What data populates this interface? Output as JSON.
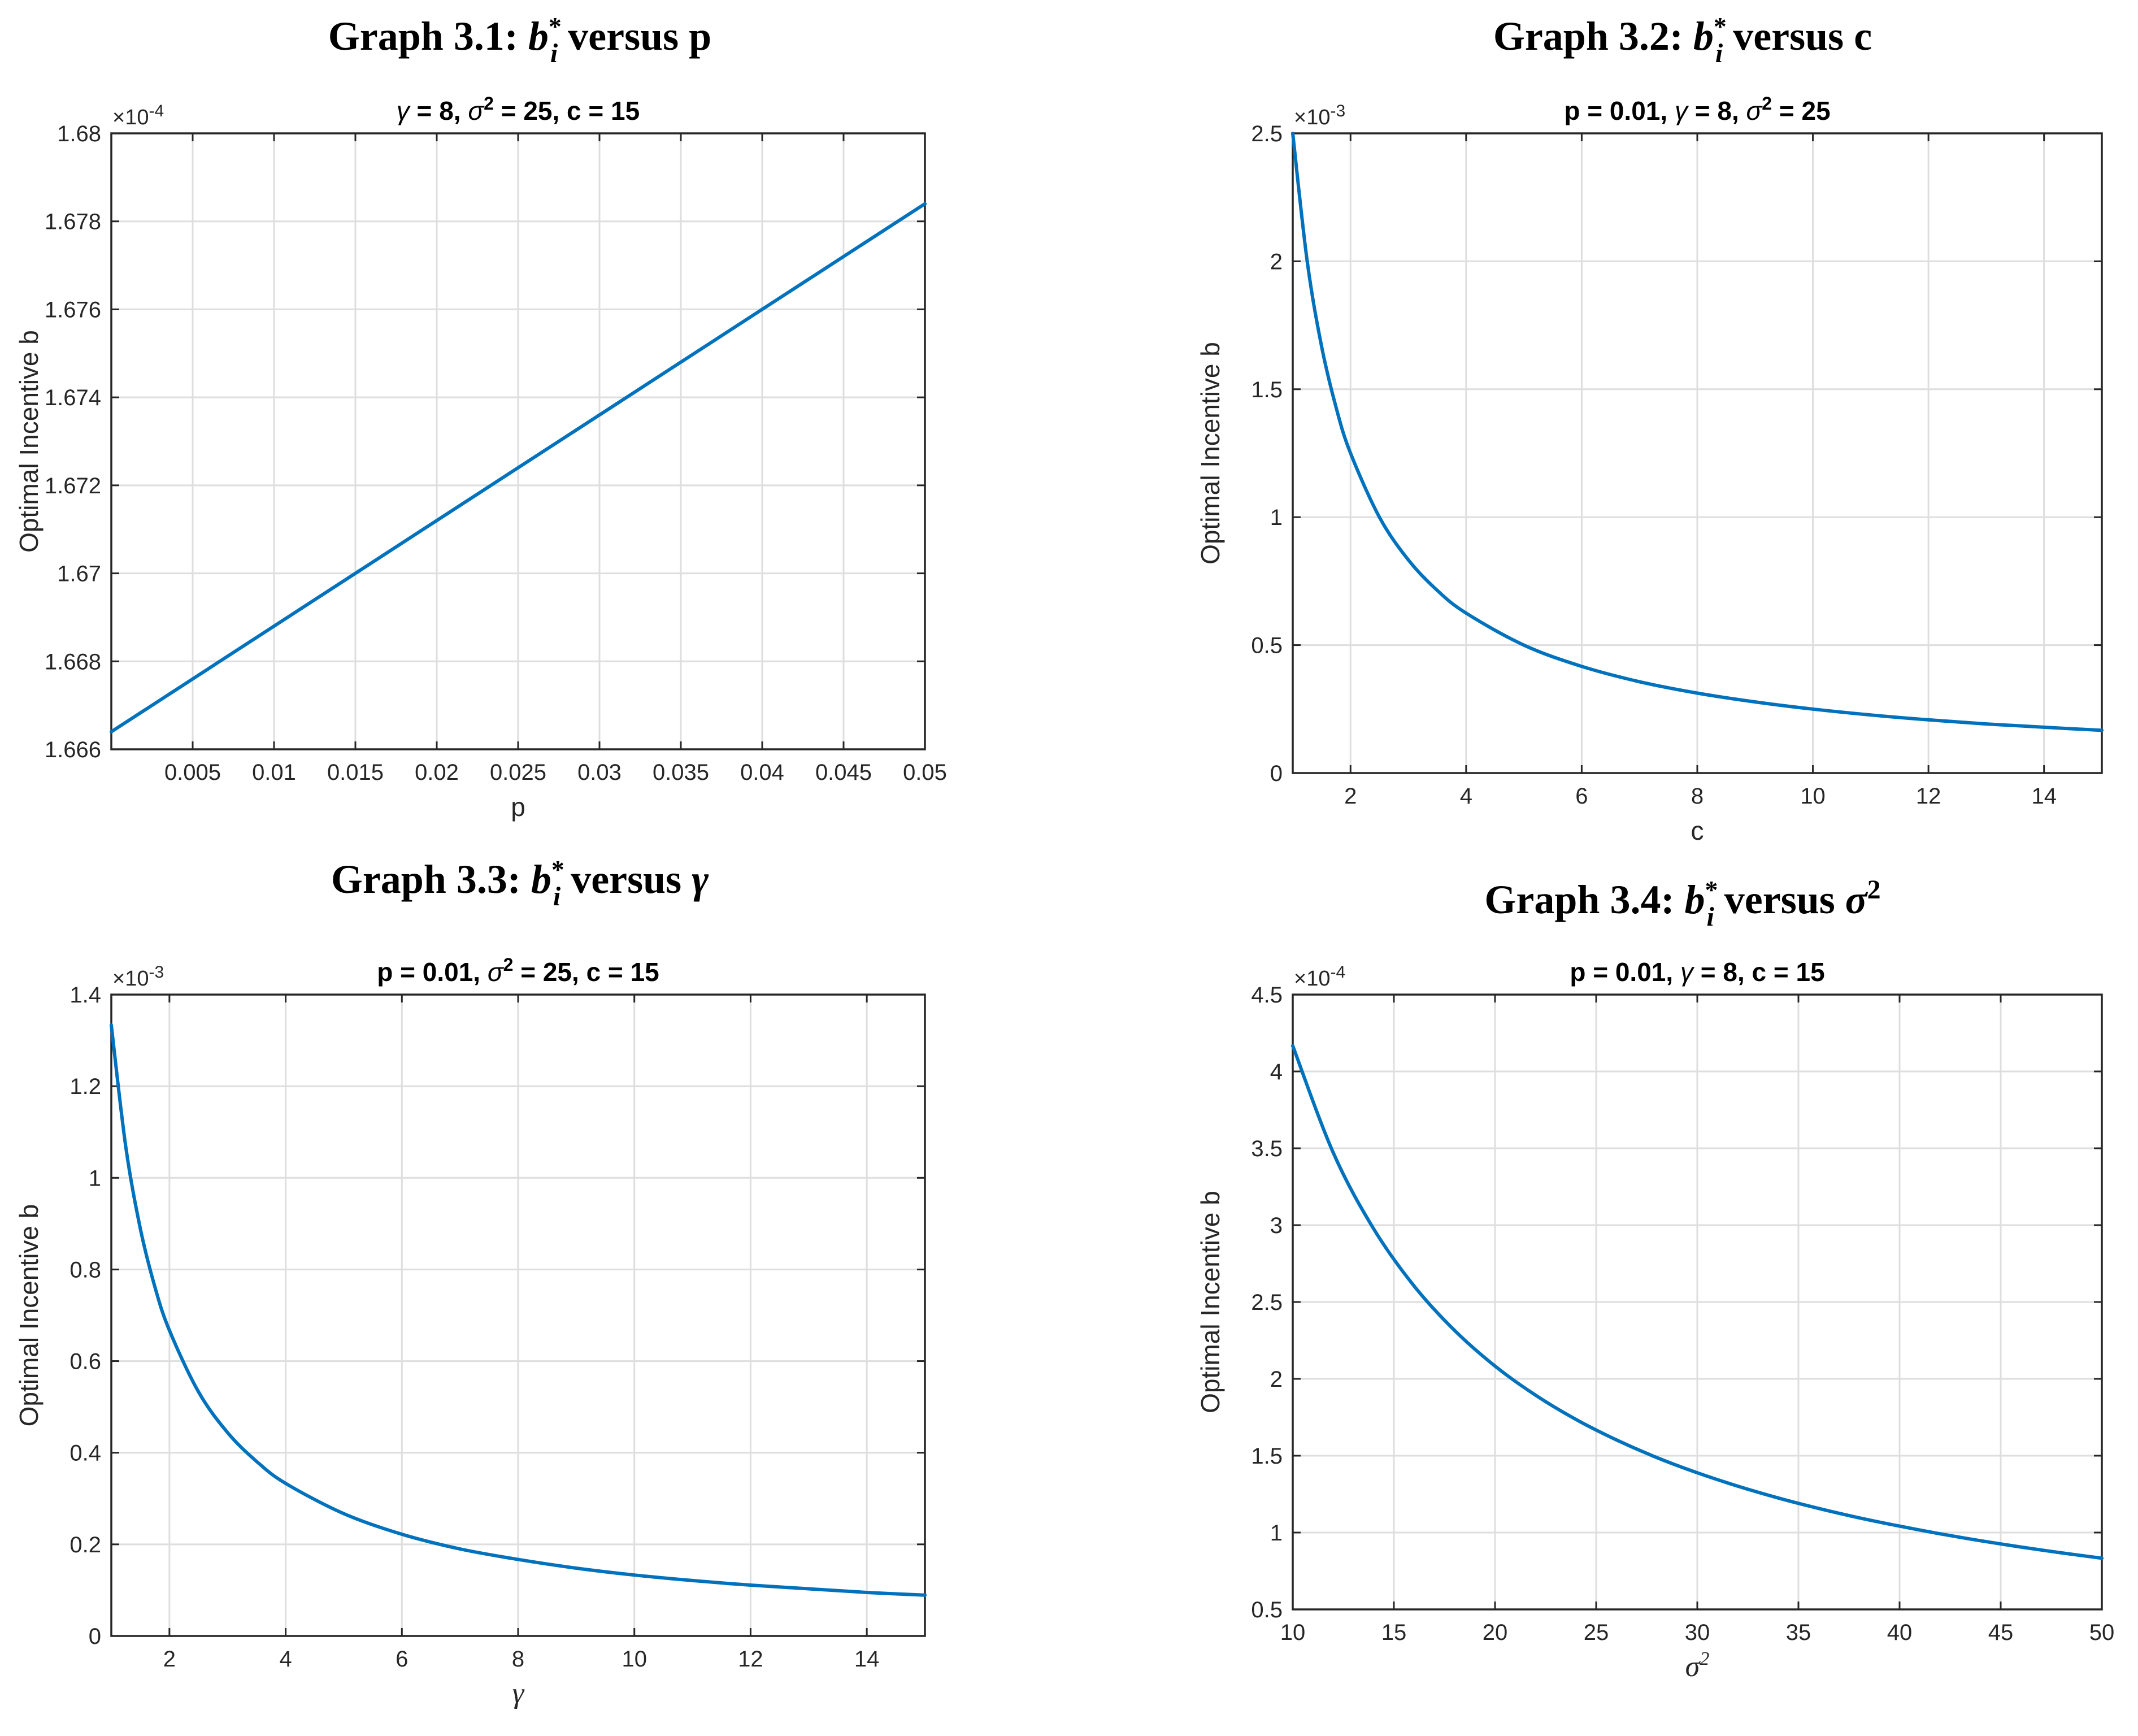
{
  "chart_data": [
    {
      "type": "line",
      "graph_title": {
        "prefix": "Graph 3.1: ",
        "var": "b",
        "sub": "i",
        "sup": "*",
        "suffix": " versus p"
      },
      "title": {
        "parts": [
          {
            "t": "γ",
            "i": true
          },
          {
            "t": " = 8, "
          },
          {
            "t": "σ",
            "i": true
          },
          {
            "t": "2",
            "sup": true
          },
          {
            "t": " = 25, c = 15"
          }
        ]
      },
      "xlabel": {
        "text": "p",
        "italic": false,
        "sup": ""
      },
      "ylabel": "Optimal Incentive b",
      "xlim": [
        0,
        0.05
      ],
      "ylim": [
        1.666,
        1.68
      ],
      "y_multiplier": {
        "base": "×10",
        "exp": "-4"
      },
      "xticks": [
        0.005,
        0.01,
        0.015,
        0.02,
        0.025,
        0.03,
        0.035,
        0.04,
        0.045,
        0.05
      ],
      "xtick_labels": [
        "0.005",
        "0.01",
        "0.015",
        "0.02",
        "0.025",
        "0.03",
        "0.035",
        "0.04",
        "0.045",
        "0.05"
      ],
      "yticks": [
        1.666,
        1.668,
        1.67,
        1.672,
        1.674,
        1.676,
        1.678,
        1.68
      ],
      "ytick_labels": [
        "1.666",
        "1.668",
        "1.67",
        "1.672",
        "1.674",
        "1.676",
        "1.678",
        "1.68"
      ],
      "series": [
        {
          "name": "b*",
          "x": [
            0,
            0.01,
            0.02,
            0.03,
            0.04,
            0.05
          ],
          "values": [
            1.6664,
            1.6688,
            1.6712,
            1.6736,
            1.676,
            1.6784
          ]
        }
      ]
    },
    {
      "type": "line",
      "graph_title": {
        "prefix": "Graph 3.2: ",
        "var": "b",
        "sub": "i",
        "sup": "*",
        "suffix": " versus c"
      },
      "title": {
        "parts": [
          {
            "t": "p = 0.01, "
          },
          {
            "t": "γ",
            "i": true
          },
          {
            "t": " = 8, "
          },
          {
            "t": "σ",
            "i": true
          },
          {
            "t": "2",
            "sup": true
          },
          {
            "t": " = 25"
          }
        ]
      },
      "xlabel": {
        "text": "c",
        "italic": false,
        "sup": ""
      },
      "ylabel": "Optimal Incentive b",
      "xlim": [
        1,
        15
      ],
      "ylim": [
        0,
        2.5
      ],
      "y_multiplier": {
        "base": "×10",
        "exp": "-3"
      },
      "xticks": [
        2,
        4,
        6,
        8,
        10,
        12,
        14
      ],
      "xtick_labels": [
        "2",
        "4",
        "6",
        "8",
        "10",
        "12",
        "14"
      ],
      "yticks": [
        0,
        0.5,
        1,
        1.5,
        2,
        2.5
      ],
      "ytick_labels": [
        "0",
        "0.5",
        "1",
        "1.5",
        "2",
        "2.5"
      ],
      "series": [
        {
          "name": "b*",
          "x": [
            1,
            1.25,
            1.5,
            1.75,
            2,
            2.5,
            3,
            3.5,
            4,
            5,
            6,
            7,
            8,
            9,
            10,
            11,
            12,
            13,
            14,
            15
          ],
          "values": [
            2.5,
            2.0,
            1.667,
            1.429,
            1.25,
            1.0,
            0.833,
            0.714,
            0.625,
            0.5,
            0.417,
            0.357,
            0.3125,
            0.278,
            0.25,
            0.227,
            0.208,
            0.192,
            0.179,
            0.167
          ]
        }
      ]
    },
    {
      "type": "line",
      "graph_title": {
        "prefix": "Graph 3.3: ",
        "var": "b",
        "sub": "i",
        "sup": "*",
        "suffix": " versus ",
        "suffix_var": "γ"
      },
      "title": {
        "parts": [
          {
            "t": "p = 0.01, "
          },
          {
            "t": "σ",
            "i": true
          },
          {
            "t": "2",
            "sup": true
          },
          {
            "t": " = 25, c = 15"
          }
        ]
      },
      "xlabel": {
        "text": "γ",
        "italic": true,
        "sup": ""
      },
      "ylabel": "Optimal Incentive b",
      "xlim": [
        1,
        15
      ],
      "ylim": [
        0,
        1.4
      ],
      "y_multiplier": {
        "base": "×10",
        "exp": "-3"
      },
      "xticks": [
        2,
        4,
        6,
        8,
        10,
        12,
        14
      ],
      "xtick_labels": [
        "2",
        "4",
        "6",
        "8",
        "10",
        "12",
        "14"
      ],
      "yticks": [
        0,
        0.2,
        0.4,
        0.6,
        0.8,
        1,
        1.2,
        1.4
      ],
      "ytick_labels": [
        "0",
        "0.2",
        "0.4",
        "0.6",
        "0.8",
        "1",
        "1.2",
        "1.4"
      ],
      "series": [
        {
          "name": "b*",
          "x": [
            1,
            1.25,
            1.5,
            1.75,
            2,
            2.5,
            3,
            3.5,
            4,
            5,
            6,
            7,
            8,
            9,
            10,
            11,
            12,
            13,
            14,
            15
          ],
          "values": [
            1.333,
            1.067,
            0.889,
            0.762,
            0.667,
            0.533,
            0.444,
            0.381,
            0.333,
            0.267,
            0.222,
            0.19,
            0.167,
            0.148,
            0.133,
            0.121,
            0.111,
            0.103,
            0.095,
            0.089
          ]
        }
      ]
    },
    {
      "type": "line",
      "graph_title": {
        "prefix": "Graph 3.4: ",
        "var": "b",
        "sub": "i",
        "sup": "*",
        "suffix": " versus ",
        "suffix_var": "σ",
        "suffix_sup": "2"
      },
      "title": {
        "parts": [
          {
            "t": "p = 0.01, "
          },
          {
            "t": "γ",
            "i": true
          },
          {
            "t": " = 8, c = 15"
          }
        ]
      },
      "xlabel": {
        "text": "σ",
        "italic": true,
        "sup": "2"
      },
      "ylabel": "Optimal Incentive b",
      "xlim": [
        10,
        50
      ],
      "ylim": [
        0.5,
        4.5
      ],
      "y_multiplier": {
        "base": "×10",
        "exp": "-4"
      },
      "xticks": [
        10,
        15,
        20,
        25,
        30,
        35,
        40,
        45,
        50
      ],
      "xtick_labels": [
        "10",
        "15",
        "20",
        "25",
        "30",
        "35",
        "40",
        "45",
        "50"
      ],
      "yticks": [
        0.5,
        1,
        1.5,
        2,
        2.5,
        3,
        3.5,
        4,
        4.5
      ],
      "ytick_labels": [
        "0.5",
        "1",
        "1.5",
        "2",
        "2.5",
        "3",
        "3.5",
        "4",
        "4.5"
      ],
      "series": [
        {
          "name": "b*",
          "x": [
            10,
            12,
            14,
            16,
            18,
            20,
            22,
            24,
            26,
            28,
            30,
            32,
            34,
            36,
            38,
            40,
            42,
            44,
            46,
            48,
            50
          ],
          "values": [
            4.167,
            3.472,
            2.976,
            2.604,
            2.315,
            2.083,
            1.894,
            1.736,
            1.603,
            1.488,
            1.389,
            1.302,
            1.225,
            1.157,
            1.096,
            1.042,
            0.992,
            0.947,
            0.906,
            0.868,
            0.833
          ]
        }
      ]
    }
  ]
}
